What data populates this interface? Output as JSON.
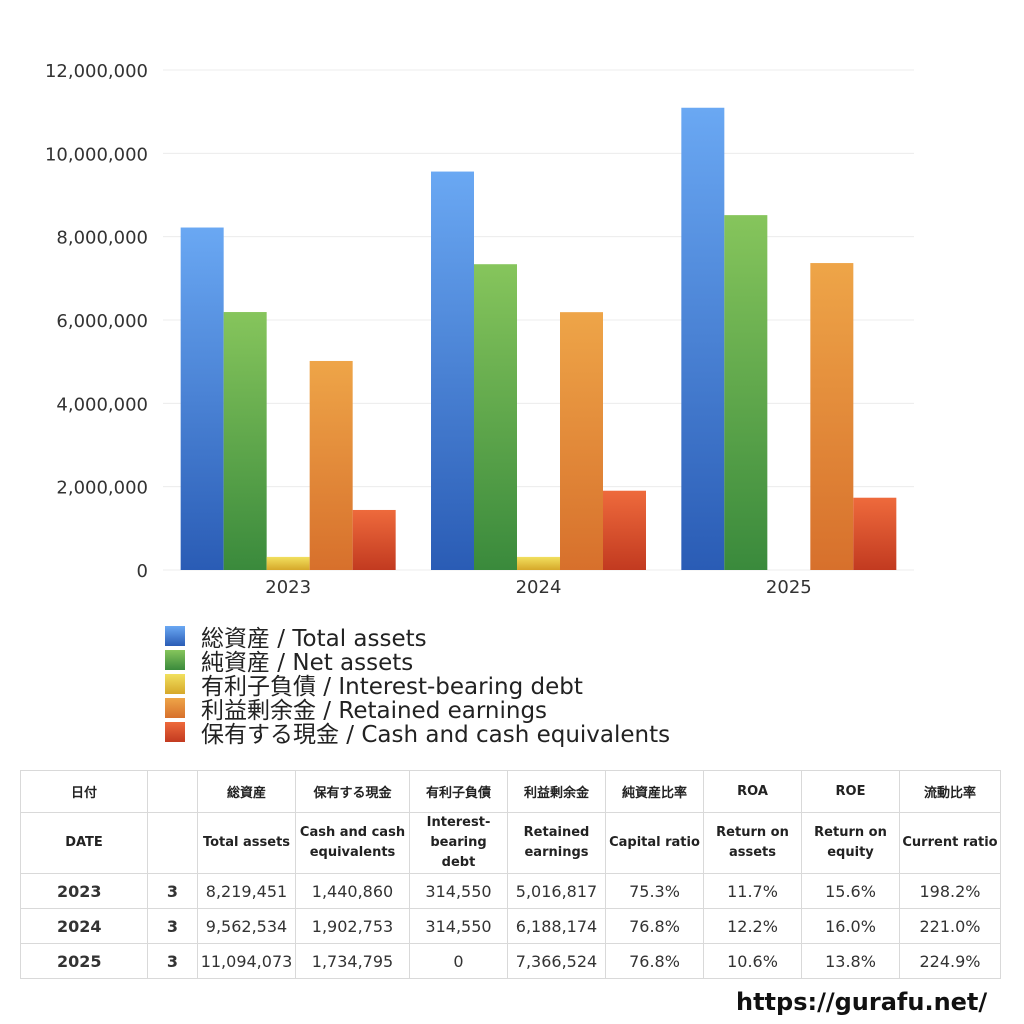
{
  "chart_data": {
    "type": "bar",
    "categories": [
      "2023",
      "2024",
      "2025"
    ],
    "ylim": [
      0,
      12000000
    ],
    "yticks": [
      "0",
      "2,000,000",
      "4,000,000",
      "6,000,000",
      "8,000,000",
      "10,000,000",
      "12,000,000"
    ],
    "ytick_values": [
      0,
      2000000,
      4000000,
      6000000,
      8000000,
      10000000,
      12000000
    ],
    "grid": true,
    "legend_position": "bottom",
    "series": [
      {
        "name": "総資産 / Total assets",
        "values": [
          8219451,
          9562534,
          11094073
        ],
        "color_top": "#6aa8f3",
        "color_bottom": "#2a5cb5"
      },
      {
        "name": "純資産 / Net assets",
        "values": [
          6191000,
          7339000,
          8517000
        ],
        "color_top": "#86c55c",
        "color_bottom": "#3a8a3c"
      },
      {
        "name": "有利子負債 / Interest-bearing debt",
        "values": [
          314550,
          314550,
          0
        ],
        "color_top": "#f1e05e",
        "color_bottom": "#d6a82a"
      },
      {
        "name": "利益剰余金 / Retained earnings",
        "values": [
          5016817,
          6188174,
          7366524
        ],
        "color_top": "#eea548",
        "color_bottom": "#d7702c"
      },
      {
        "name": "保有する現金 /  Cash and cash equivalents",
        "values": [
          1440860,
          1902753,
          1734795
        ],
        "color_top": "#ee6a3c",
        "color_bottom": "#c23a20"
      }
    ]
  },
  "table": {
    "header_jp": [
      "日付",
      "",
      "総資産",
      "保有する現金",
      "有利子負債",
      "利益剰余金",
      "純資産比率",
      "ROA",
      "ROE",
      "流動比率"
    ],
    "header_en": [
      "DATE",
      "",
      "Total assets",
      "Cash and cash equivalents",
      "Interest-bearing debt",
      "Retained earnings",
      "Capital ratio",
      "Return on assets",
      "Return on equity",
      "Current ratio"
    ],
    "rows": [
      [
        "2023",
        "3",
        "8,219,451",
        "1,440,860",
        "314,550",
        "5,016,817",
        "75.3%",
        "11.7%",
        "15.6%",
        "198.2%"
      ],
      [
        "2024",
        "3",
        "9,562,534",
        "1,902,753",
        "314,550",
        "6,188,174",
        "76.8%",
        "12.2%",
        "16.0%",
        "221.0%"
      ],
      [
        "2025",
        "3",
        "11,094,073",
        "1,734,795",
        "0",
        "7,366,524",
        "76.8%",
        "10.6%",
        "13.8%",
        "224.9%"
      ]
    ]
  },
  "site_url": "https://gurafu.net/"
}
